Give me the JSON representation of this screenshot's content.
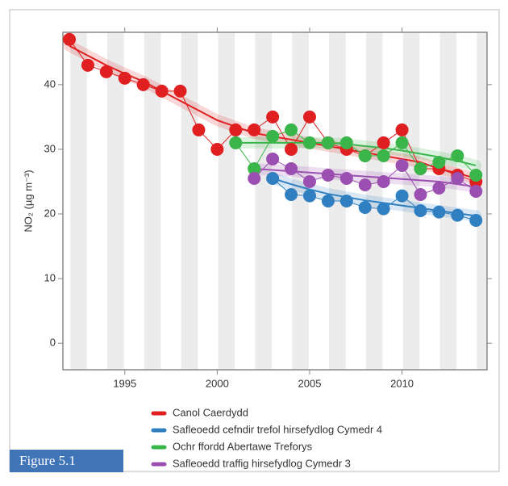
{
  "chart_data": {
    "type": "line",
    "y_label": "NO₂ (µg m⁻³)",
    "figure_label": "Figure 5.1",
    "x": [
      1992,
      1993,
      1994,
      1995,
      1996,
      1997,
      1998,
      1999,
      2000,
      2001,
      2002,
      2003,
      2004,
      2005,
      2006,
      2007,
      2008,
      2009,
      2010,
      2011,
      2012,
      2013,
      2014
    ],
    "xlim": [
      1991.65,
      2014.6
    ],
    "xticks": [
      1995,
      2000,
      2005,
      2010
    ],
    "ylim": [
      -4.1,
      48.1
    ],
    "yticks": [
      0,
      10,
      20,
      30,
      40
    ],
    "series": [
      {
        "name": "Canol Caerdydd",
        "color": "#e02020",
        "values": [
          47,
          43,
          42,
          41,
          40,
          39,
          39,
          33,
          30,
          33,
          33,
          35,
          30,
          35,
          31,
          30,
          29,
          31,
          33,
          27,
          27,
          26,
          25
        ],
        "trend": [
          46,
          44.5,
          43,
          41.7,
          40.5,
          39,
          37.5,
          36,
          34.5,
          33.5,
          32.5,
          32,
          31.5,
          31,
          30.5,
          30,
          29.5,
          29,
          28.5,
          28,
          27,
          26.3,
          25.5
        ]
      },
      {
        "name": "Safleoedd cefndir trefol hirsefydlog Cymedr 4",
        "color": "#2f7fc1",
        "values": [
          null,
          null,
          null,
          null,
          null,
          null,
          null,
          null,
          null,
          null,
          null,
          25.5,
          23,
          22.8,
          22,
          22,
          21,
          20.8,
          22.8,
          20.5,
          20.3,
          19.8,
          19
        ],
        "trend": [
          null,
          null,
          null,
          null,
          null,
          null,
          null,
          null,
          null,
          null,
          null,
          25.5,
          24.6,
          23.8,
          23.1,
          22.6,
          22.1,
          21.7,
          21.3,
          20.9,
          20.5,
          20.1,
          19.7
        ]
      },
      {
        "name": "Ochr ffordd Abertawe Treforys",
        "color": "#3ab54a",
        "values": [
          null,
          null,
          null,
          null,
          null,
          null,
          null,
          null,
          null,
          31,
          27,
          32,
          33,
          31,
          31,
          31,
          29,
          29,
          31,
          27,
          28,
          29,
          26
        ],
        "trend": [
          null,
          null,
          null,
          null,
          null,
          null,
          null,
          null,
          null,
          31,
          31,
          31,
          31,
          31,
          31,
          30.8,
          30.5,
          30.2,
          29.8,
          29.3,
          28.8,
          28.2,
          27.5
        ]
      },
      {
        "name": "Safleoedd traffig hirsefydlog Cymedr 3",
        "color": "#9b4fb0",
        "values": [
          null,
          null,
          null,
          null,
          null,
          null,
          null,
          null,
          null,
          null,
          25.5,
          28.5,
          27,
          25,
          26,
          25.5,
          24.5,
          25,
          27.5,
          23,
          24,
          25.5,
          23.5
        ],
        "trend": [
          null,
          null,
          null,
          null,
          null,
          null,
          null,
          null,
          null,
          null,
          27,
          26.8,
          26.6,
          26.4,
          26.2,
          26,
          25.8,
          25.6,
          25.4,
          25.2,
          25,
          24.6,
          24.2
        ]
      }
    ]
  }
}
